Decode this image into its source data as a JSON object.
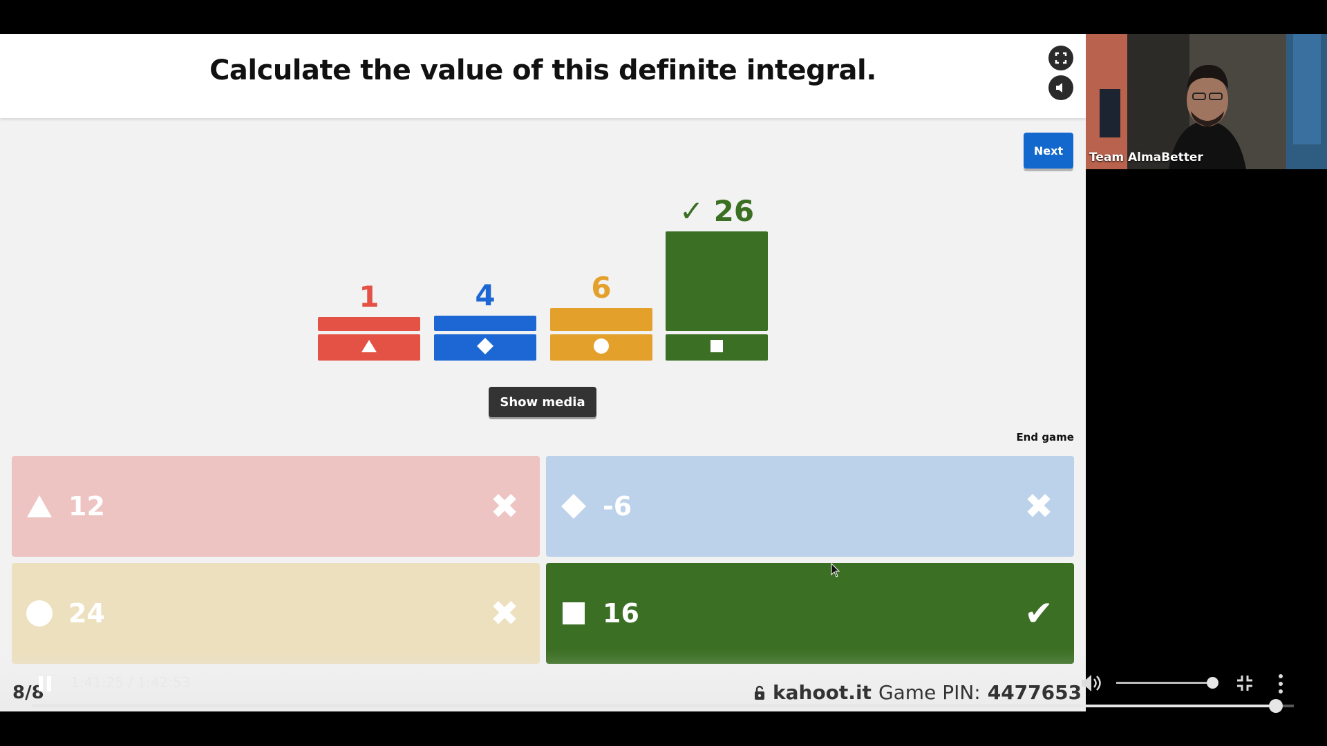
{
  "question": {
    "title": "Calculate the value of this definite integral."
  },
  "controls": {
    "next_label": "Next",
    "show_media_label": "Show media",
    "end_game_label": "End game"
  },
  "colors": {
    "red": "#e35245",
    "blue": "#1c67d3",
    "yellow": "#e3a02b",
    "green": "#3b6f23"
  },
  "chart_data": {
    "type": "bar",
    "categories": [
      "triangle",
      "diamond",
      "circle",
      "square"
    ],
    "values": [
      1,
      4,
      6,
      26
    ],
    "labels": [
      "1",
      "4",
      "6",
      "26"
    ],
    "correct_index": 3,
    "correct_mark": "✓"
  },
  "answers": [
    {
      "shape": "triangle",
      "text": "12",
      "correct": false,
      "mark": "✖"
    },
    {
      "shape": "diamond",
      "text": "-6",
      "correct": false,
      "mark": "✖"
    },
    {
      "shape": "circle",
      "text": "24",
      "correct": false,
      "mark": "✖"
    },
    {
      "shape": "square",
      "text": "16",
      "correct": true,
      "mark": "✔"
    }
  ],
  "footer": {
    "counter": "8/8",
    "time": "1:41:25 / 1:42:53",
    "site": "kahoot.it",
    "pin_label": "Game PIN:",
    "pin": "4477653"
  },
  "player": {
    "progress": 0.986,
    "volume": 0.9
  },
  "webcam": {
    "label": "Team AlmaBetter"
  }
}
